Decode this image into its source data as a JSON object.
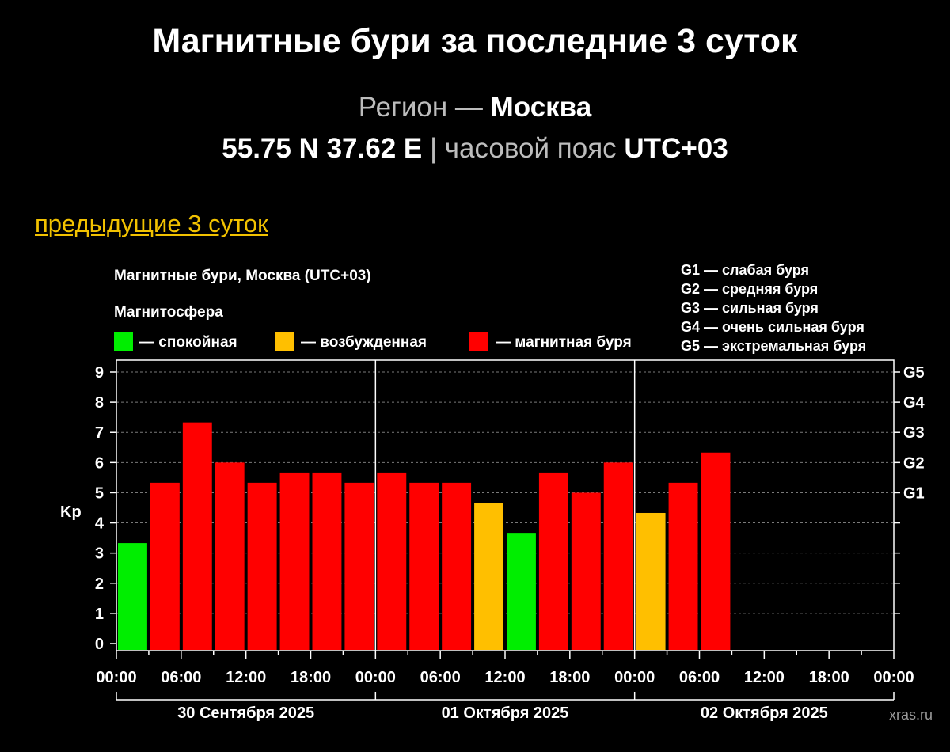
{
  "header": {
    "title": "Магнитные бури за последние 3 суток",
    "region_label": "Регион —",
    "region_name": "Москва",
    "coords": "55.75 N 37.62 E",
    "separator": "|",
    "tz_label": "часовой пояс",
    "tz_value": "UTC+03"
  },
  "nav": {
    "prev_link": "предыдущие 3 суток"
  },
  "colors": {
    "calm": "#00ee00",
    "excited": "#ffbf00",
    "storm": "#ff0000",
    "link": "#f2c200",
    "background": "#000000",
    "grid": "#7a7a7a"
  },
  "chart_data": {
    "type": "bar",
    "title": "Магнитные бури, Москва (UTC+03)",
    "legend_title": "Магнитосфера",
    "legend": [
      {
        "key": "calm",
        "label": "— спокойная"
      },
      {
        "key": "excited",
        "label": "— возбужденная"
      },
      {
        "key": "storm",
        "label": "— магнитная буря"
      }
    ],
    "storm_scale": [
      "G1 — слабая буря",
      "G2 — средняя буря",
      "G3 — сильная буря",
      "G4 — очень сильная буря",
      "G5 — экстремальная буря"
    ],
    "ylabel": "Kp",
    "ylim": [
      0,
      9
    ],
    "yticks": [
      "0",
      "1",
      "2",
      "3",
      "4",
      "5",
      "6",
      "7",
      "8",
      "9"
    ],
    "right_ticks": [
      {
        "kp": 5,
        "label": "G1"
      },
      {
        "kp": 6,
        "label": "G2"
      },
      {
        "kp": 7,
        "label": "G3"
      },
      {
        "kp": 8,
        "label": "G4"
      },
      {
        "kp": 9,
        "label": "G5"
      }
    ],
    "x_tick_labels": [
      "00:00",
      "06:00",
      "12:00",
      "18:00",
      "00:00",
      "06:00",
      "12:00",
      "18:00",
      "00:00",
      "06:00",
      "12:00",
      "18:00",
      "00:00"
    ],
    "days": [
      "30 Сентября 2025",
      "01 Октября 2025",
      "02 Октября 2025"
    ],
    "interval_hours": 3,
    "total_hours": 72,
    "bars": [
      {
        "kp": 3.33,
        "level": "calm"
      },
      {
        "kp": 5.33,
        "level": "storm"
      },
      {
        "kp": 7.33,
        "level": "storm"
      },
      {
        "kp": 6.0,
        "level": "storm"
      },
      {
        "kp": 5.33,
        "level": "storm"
      },
      {
        "kp": 5.67,
        "level": "storm"
      },
      {
        "kp": 5.67,
        "level": "storm"
      },
      {
        "kp": 5.33,
        "level": "storm"
      },
      {
        "kp": 5.67,
        "level": "storm"
      },
      {
        "kp": 5.33,
        "level": "storm"
      },
      {
        "kp": 5.33,
        "level": "storm"
      },
      {
        "kp": 4.67,
        "level": "excited"
      },
      {
        "kp": 3.67,
        "level": "calm"
      },
      {
        "kp": 5.67,
        "level": "storm"
      },
      {
        "kp": 5.0,
        "level": "storm"
      },
      {
        "kp": 6.0,
        "level": "storm"
      },
      {
        "kp": 4.33,
        "level": "excited"
      },
      {
        "kp": 5.33,
        "level": "storm"
      },
      {
        "kp": 6.33,
        "level": "storm"
      }
    ],
    "grid": true,
    "watermark": "xras.ru"
  }
}
